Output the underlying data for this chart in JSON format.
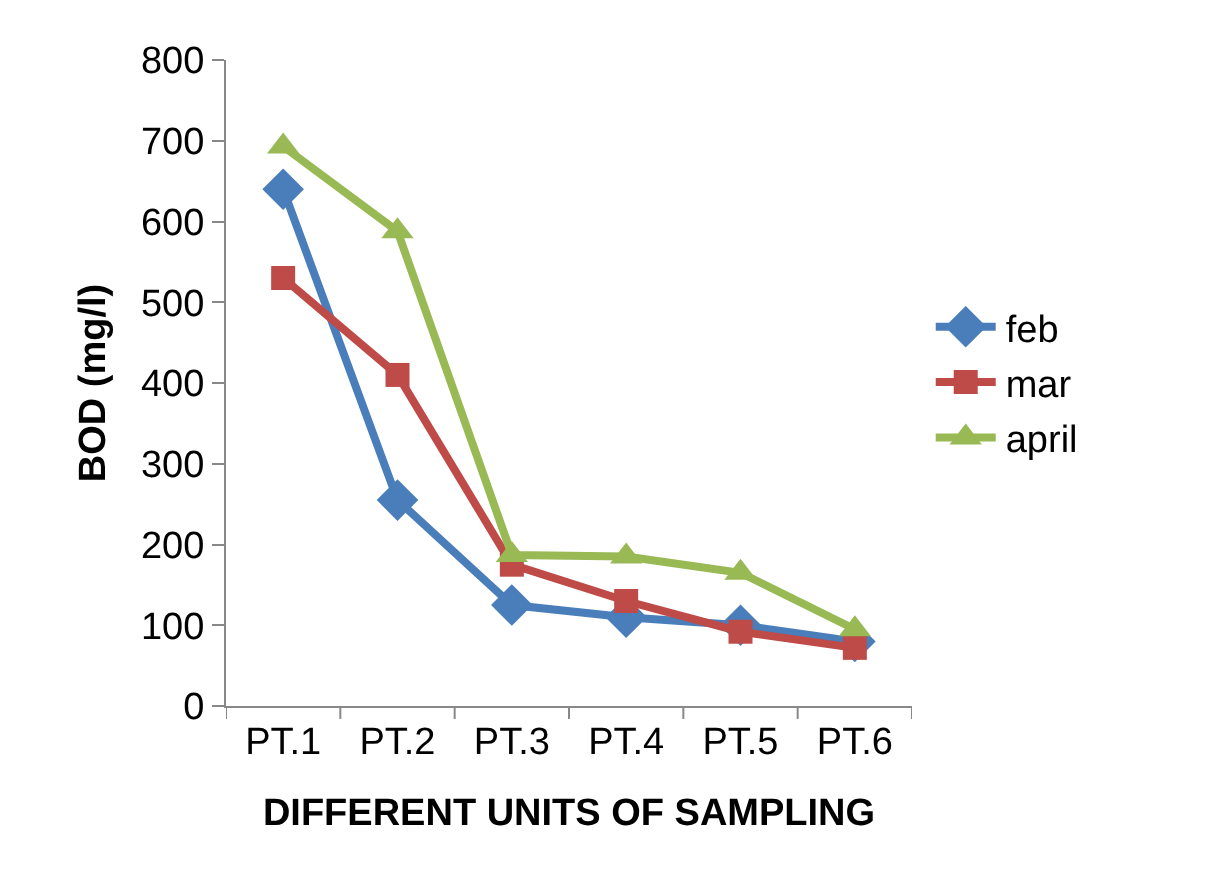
{
  "chart_data": {
    "type": "line",
    "xlabel": "DIFFERENT UNITS OF SAMPLING",
    "ylabel": "BOD (mg/l)",
    "categories": [
      "PT.1",
      "PT.2",
      "PT.3",
      "PT.4",
      "PT.5",
      "PT.6"
    ],
    "ylim": [
      0,
      800
    ],
    "yticks": [
      0,
      100,
      200,
      300,
      400,
      500,
      600,
      700,
      800
    ],
    "grid": false,
    "legend": "right",
    "series": [
      {
        "name": "feb",
        "color": "#4a7ebb",
        "marker": "diamond",
        "values": [
          640,
          255,
          125,
          110,
          100,
          80
        ]
      },
      {
        "name": "mar",
        "color": "#be4b48",
        "marker": "square",
        "values": [
          530,
          410,
          175,
          130,
          92,
          72
        ]
      },
      {
        "name": "april",
        "color": "#98b954",
        "marker": "triangle",
        "values": [
          693,
          588,
          187,
          185,
          165,
          95
        ]
      }
    ]
  }
}
